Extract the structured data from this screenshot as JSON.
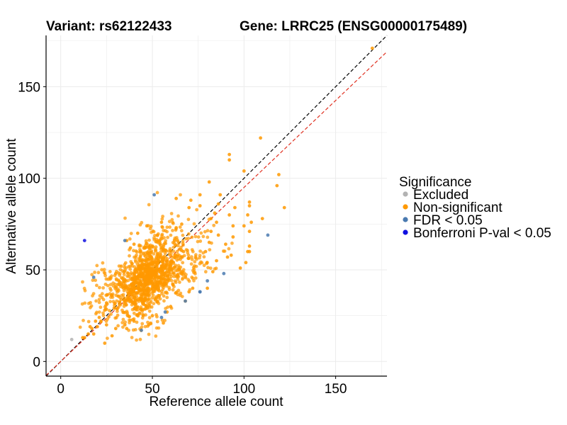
{
  "chart_data": {
    "type": "scatter",
    "title_left": "Variant: rs62122433",
    "title_right": "Gene: LRRC25 (ENSG00000175489)",
    "xlabel": "Reference allele count",
    "ylabel": "Alternative allele count",
    "xlim": [
      -8,
      178
    ],
    "ylim": [
      -8,
      178
    ],
    "x_ticks": [
      0,
      50,
      100,
      150
    ],
    "y_ticks": [
      0,
      50,
      100,
      150
    ],
    "grid": true,
    "legend": {
      "title": "Significance",
      "placement": "right",
      "entries": [
        {
          "label": "Excluded",
          "color": "#b3b3b3"
        },
        {
          "label": "Non-significant",
          "color": "#ff9900"
        },
        {
          "label": "FDR < 0.05",
          "color": "#4a7ab0"
        },
        {
          "label": "Bonferroni P-val < 0.05",
          "color": "#1010e0"
        }
      ]
    },
    "reference_lines": [
      {
        "style": "dashed",
        "color": "#000000",
        "slope": 1.0,
        "intercept": 0
      },
      {
        "style": "dashed",
        "color": "#e03020",
        "slope": 0.95,
        "intercept": 0
      }
    ],
    "cloud": {
      "series": "Non-significant",
      "count": 1300,
      "center_ref": 48,
      "center_alt": 46,
      "spread_along": 15,
      "spread_across": 6
    },
    "series": [
      {
        "name": "Excluded",
        "points": [
          [
            6,
            12
          ]
        ]
      },
      {
        "name": "Non-significant",
        "points": [
          [
            109,
            122
          ],
          [
            100,
            104
          ],
          [
            92,
            113
          ],
          [
            92,
            110
          ],
          [
            119,
            102
          ],
          [
            118,
            96
          ],
          [
            122,
            84
          ],
          [
            103,
            87
          ],
          [
            103,
            85
          ],
          [
            102,
            80
          ],
          [
            104,
            76
          ],
          [
            110,
            78
          ],
          [
            95,
            84
          ],
          [
            92,
            80
          ],
          [
            103,
            71
          ],
          [
            100,
            74
          ],
          [
            94,
            74
          ],
          [
            94,
            68
          ],
          [
            103,
            63
          ],
          [
            103,
            60
          ],
          [
            101,
            54
          ],
          [
            102,
            60
          ],
          [
            98,
            51
          ],
          [
            93,
            58
          ],
          [
            91,
            57
          ],
          [
            86,
            69
          ],
          [
            85,
            76
          ],
          [
            90,
            64
          ],
          [
            82,
            71
          ],
          [
            81,
            65
          ],
          [
            85,
            55
          ],
          [
            80,
            40
          ],
          [
            83,
            49
          ],
          [
            79,
            60
          ],
          [
            86,
            86
          ],
          [
            84,
            81
          ],
          [
            87,
            91
          ],
          [
            82,
            78
          ],
          [
            76,
            91
          ],
          [
            81,
            98
          ],
          [
            76,
            85
          ],
          [
            70,
            84
          ],
          [
            71,
            88
          ],
          [
            66,
            75
          ],
          [
            63,
            89
          ],
          [
            63,
            73
          ],
          [
            67,
            60
          ],
          [
            40,
            64
          ],
          [
            38,
            62
          ],
          [
            45,
            59
          ],
          [
            25,
            32
          ],
          [
            24,
            28
          ],
          [
            25,
            20
          ],
          [
            21,
            24
          ],
          [
            22,
            22
          ],
          [
            19,
            22
          ],
          [
            17,
            18
          ],
          [
            20,
            19
          ],
          [
            30,
            18
          ],
          [
            28,
            14
          ],
          [
            24,
            10
          ],
          [
            40,
            22
          ],
          [
            35,
            20
          ],
          [
            45,
            25
          ],
          [
            50,
            25
          ],
          [
            58,
            27
          ],
          [
            60,
            30
          ],
          [
            68,
            33
          ],
          [
            72,
            40
          ],
          [
            70,
            38
          ],
          [
            56,
            21
          ],
          [
            48,
            20
          ],
          [
            28,
            36
          ],
          [
            30,
            48
          ],
          [
            33,
            52
          ],
          [
            36,
            66
          ],
          [
            42,
            70
          ],
          [
            47,
            74
          ],
          [
            55,
            76
          ],
          [
            36,
            18
          ],
          [
            13,
            13
          ],
          [
            15,
            15
          ],
          [
            12,
            13
          ],
          [
            18,
            15
          ],
          [
            16,
            19
          ]
        ]
      },
      {
        "name": "FDR < 0.05",
        "points": [
          [
            51,
            91
          ],
          [
            35,
            66
          ],
          [
            18,
            46
          ],
          [
            44,
            17
          ],
          [
            55,
            24
          ],
          [
            57,
            27
          ],
          [
            68,
            33
          ],
          [
            76,
            38
          ],
          [
            76,
            38
          ],
          [
            80,
            44
          ],
          [
            89,
            48
          ],
          [
            113,
            69
          ]
        ]
      },
      {
        "name": "Bonferroni P-val < 0.05",
        "points": [
          [
            13,
            66
          ]
        ]
      },
      {
        "name": "Non-significant (top)",
        "color": "#ff9900",
        "points": [
          [
            170,
            171
          ]
        ]
      }
    ]
  }
}
